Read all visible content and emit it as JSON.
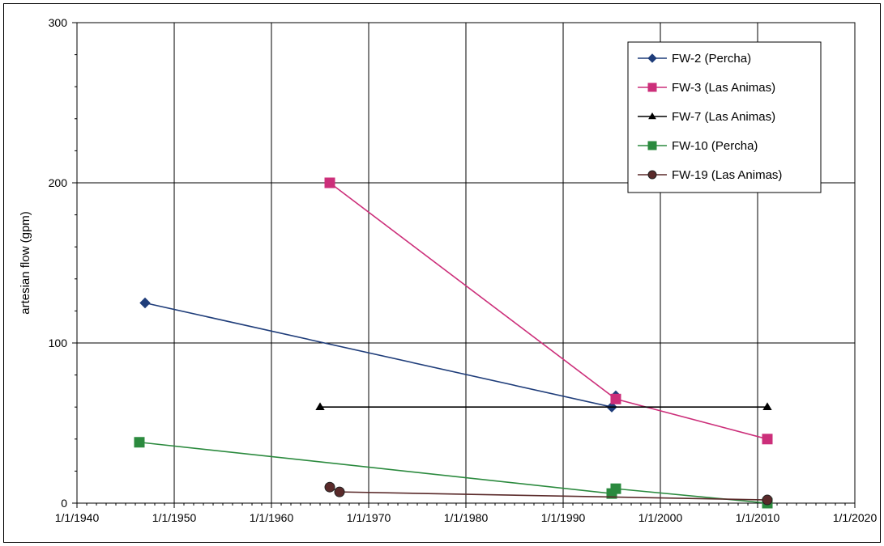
{
  "chart_data": {
    "type": "line",
    "title": "",
    "xlabel": "",
    "ylabel": "artesian flow (gpm)",
    "x_ticks": [
      "1/1/1940",
      "1/1/1950",
      "1/1/1960",
      "1/1/1970",
      "1/1/1980",
      "1/1/1990",
      "1/1/2000",
      "1/1/2010",
      "1/1/2020"
    ],
    "xlim": [
      "1940-01-01",
      "2020-01-01"
    ],
    "y_ticks": [
      "0",
      "100",
      "200",
      "300"
    ],
    "ylim": [
      0,
      300
    ],
    "grid": true,
    "legend_position": "top-right",
    "series": [
      {
        "name": "FW-2 (Percha)",
        "color": "#1f3d7a",
        "marker": "diamond",
        "points": [
          {
            "x": "1947-01-01",
            "y": 125
          },
          {
            "x": "1995-01-01",
            "y": 60
          },
          {
            "x": "1995-06-01",
            "y": 67
          }
        ]
      },
      {
        "name": "FW-3 (Las Animas)",
        "color": "#cc2f7a",
        "marker": "square",
        "points": [
          {
            "x": "1966-01-01",
            "y": 200
          },
          {
            "x": "1995-06-01",
            "y": 65
          },
          {
            "x": "2011-01-01",
            "y": 40
          }
        ]
      },
      {
        "name": "FW-7 (Las Animas)",
        "color": "#000000",
        "marker": "triangle",
        "points": [
          {
            "x": "1965-01-01",
            "y": 60
          },
          {
            "x": "2011-01-01",
            "y": 60
          }
        ]
      },
      {
        "name": "FW-10 (Percha)",
        "color": "#2b8a3e",
        "marker": "square",
        "points": [
          {
            "x": "1946-06-01",
            "y": 38
          },
          {
            "x": "1995-01-01",
            "y": 6
          },
          {
            "x": "1995-06-01",
            "y": 9
          },
          {
            "x": "2011-01-01",
            "y": 0
          }
        ]
      },
      {
        "name": "FW-19 (Las Animas)",
        "color": "#5a2a2a",
        "marker": "circle",
        "points": [
          {
            "x": "1966-01-01",
            "y": 10
          },
          {
            "x": "1967-01-01",
            "y": 7
          },
          {
            "x": "2011-01-01",
            "y": 2
          }
        ]
      }
    ]
  }
}
